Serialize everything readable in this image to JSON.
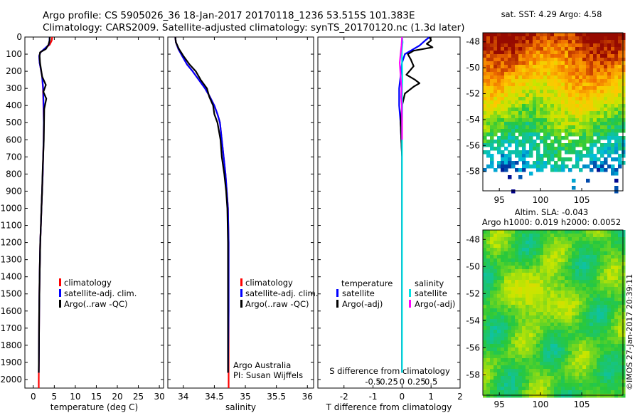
{
  "header": {
    "line1": "Argo profile: CS 5905026_36 18-Jan-2017 20170118_1236 53.515S 101.383E",
    "line2": "Climatology: CARS2009. Satellite-adjusted climatology: synTS_20170120.nc (1.3d later)"
  },
  "colors": {
    "climatology": "#ff0000",
    "satellite": "#0000ff",
    "argo": "#000000",
    "sal_satellite": "#00e5e5",
    "sal_argo": "#ff00ff"
  },
  "chart_data": [
    {
      "type": "line",
      "id": "temperature",
      "xlabel": "temperature (deg C)",
      "xlim": [
        -2,
        31
      ],
      "xticks": [
        0,
        5,
        10,
        15,
        20,
        25,
        30
      ],
      "ylim": [
        0,
        2050
      ],
      "yticks": [
        0,
        100,
        200,
        300,
        400,
        500,
        600,
        700,
        800,
        900,
        1000,
        1100,
        1200,
        1300,
        1400,
        1500,
        1600,
        1700,
        1800,
        1900,
        2000
      ],
      "legend": [
        "climatology",
        "satellite-adj. clim.",
        "Argo(..raw -QC)"
      ],
      "series": [
        {
          "name": "climatology",
          "color": "#ff0000",
          "x": [
            4.5,
            4.4,
            3.9,
            2.6,
            1.7,
            1.4,
            1.5,
            2.1,
            2.3,
            2.4,
            2.5,
            2.45,
            2.35,
            2.25,
            2.1,
            1.95,
            1.8,
            1.65,
            1.5,
            1.4,
            1.35,
            1.3,
            1.3
          ],
          "y": [
            0,
            20,
            45,
            70,
            90,
            110,
            150,
            230,
            300,
            400,
            500,
            600,
            700,
            800,
            900,
            1000,
            1100,
            1200,
            1400,
            1600,
            1800,
            2000,
            2050
          ]
        },
        {
          "name": "satellite-adj. clim.",
          "color": "#0000ff",
          "x": [
            3.9,
            3.85,
            3.7,
            2.6,
            1.7,
            1.4,
            1.5,
            2.1,
            2.35,
            2.45,
            2.5,
            2.45,
            2.35,
            2.25,
            2.1,
            1.95,
            1.8,
            1.65,
            1.5,
            1.4,
            1.35,
            1.3
          ],
          "y": [
            0,
            20,
            45,
            70,
            90,
            110,
            150,
            230,
            300,
            400,
            500,
            600,
            700,
            800,
            900,
            1000,
            1100,
            1200,
            1400,
            1600,
            1800,
            1960
          ]
        },
        {
          "name": "Argo(..raw -QC)",
          "color": "#000000",
          "x": [
            3.9,
            3.9,
            3.6,
            3.0,
            1.6,
            1.5,
            1.6,
            2.1,
            3.0,
            2.4,
            3.1,
            2.6,
            2.5,
            2.2,
            2.1,
            1.95,
            1.8,
            1.65,
            1.5,
            1.4,
            1.35,
            1.3
          ],
          "y": [
            0,
            20,
            45,
            70,
            90,
            110,
            150,
            230,
            280,
            320,
            360,
            420,
            600,
            800,
            900,
            1000,
            1100,
            1200,
            1400,
            1600,
            1800,
            1960
          ]
        }
      ]
    },
    {
      "type": "line",
      "id": "salinity",
      "xlabel": "salinity",
      "xlim": [
        33.75,
        36.1
      ],
      "xticks": [
        34,
        34.5,
        35,
        35.5,
        36
      ],
      "xticklabels": [
        "34",
        "34.5",
        "35",
        "35.5",
        "36"
      ],
      "ylim": [
        0,
        2050
      ],
      "legend": [
        "climatology",
        "satellite-adj. clim.",
        "Argo(..raw -QC)"
      ],
      "annotation": [
        "Argo Australia",
        "PI: Susan Wijffels"
      ],
      "series": [
        {
          "name": "climatology",
          "color": "#ff0000",
          "x": [
            33.87,
            33.88,
            33.92,
            33.98,
            34.06,
            34.15,
            34.25,
            34.35,
            34.43,
            34.5,
            34.55,
            34.59,
            34.62,
            34.65,
            34.68,
            34.7,
            34.72,
            34.73,
            34.73,
            34.73
          ],
          "y": [
            0,
            30,
            70,
            110,
            160,
            200,
            250,
            300,
            350,
            400,
            450,
            500,
            600,
            700,
            800,
            900,
            1000,
            1200,
            1600,
            2050
          ]
        },
        {
          "name": "satellite-adj. clim.",
          "color": "#0000ff",
          "x": [
            33.87,
            33.88,
            33.92,
            33.98,
            34.06,
            34.15,
            34.25,
            34.35,
            34.43,
            34.5,
            34.55,
            34.59,
            34.62,
            34.65,
            34.68,
            34.7,
            34.72,
            34.73,
            34.73,
            34.72
          ],
          "y": [
            0,
            30,
            70,
            110,
            160,
            200,
            250,
            300,
            350,
            400,
            450,
            500,
            600,
            700,
            800,
            900,
            1000,
            1200,
            1600,
            1960
          ]
        },
        {
          "name": "Argo(..raw -QC)",
          "color": "#000000",
          "x": [
            33.87,
            33.88,
            33.93,
            34.0,
            34.1,
            34.2,
            34.28,
            34.38,
            34.42,
            34.48,
            34.5,
            34.55,
            34.6,
            34.62,
            34.66,
            34.69,
            34.71,
            34.72,
            34.72,
            34.72
          ],
          "y": [
            0,
            30,
            70,
            110,
            160,
            200,
            250,
            300,
            350,
            400,
            450,
            500,
            600,
            700,
            800,
            900,
            1000,
            1200,
            1600,
            1960
          ]
        }
      ]
    },
    {
      "type": "line",
      "id": "difference",
      "xlabel": "T difference from climatology",
      "xlim": [
        -2.9,
        2.0
      ],
      "xticks": [
        -2,
        -1,
        0,
        1,
        2
      ],
      "top_axis_label": "S difference from climatology",
      "top_ticks": [
        -0.5,
        -0.25,
        0,
        0.25,
        0.5
      ],
      "top_ticklabels": [
        "-0.5",
        "-0.25",
        "0",
        "0.25",
        "0.5"
      ],
      "ylim": [
        0,
        2050
      ],
      "legend": [
        {
          "group": "temperature",
          "items": [
            "satellite",
            "Argo(-adj)"
          ]
        },
        {
          "group": "salinity",
          "items": [
            "satellite",
            "Argo(-adj)"
          ]
        }
      ],
      "series": [
        {
          "name": "T satellite",
          "color": "#0000ff",
          "x": [
            0.95,
            0.8,
            0.6,
            0.3,
            0.1,
            0.0,
            -0.1,
            -0.1,
            -0.05,
            0.0,
            0.0,
            0.0,
            0.0,
            0.0,
            0.0,
            0.0
          ],
          "y": [
            0,
            20,
            50,
            80,
            100,
            150,
            300,
            400,
            500,
            700,
            900,
            1100,
            1400,
            1600,
            1800,
            1960
          ]
        },
        {
          "name": "T Argo(-adj)",
          "color": "#000000",
          "x": [
            0.95,
            1.0,
            0.85,
            1.05,
            0.4,
            0.2,
            0.3,
            0.4,
            0.15,
            0.45,
            0.6,
            0.4,
            0.1,
            0.0,
            -0.05,
            0.0,
            0.0,
            0.0,
            0.0,
            0.0
          ],
          "y": [
            0,
            20,
            40,
            60,
            80,
            100,
            130,
            170,
            220,
            250,
            270,
            290,
            330,
            400,
            500,
            700,
            900,
            1100,
            1500,
            1960
          ]
        },
        {
          "name": "S satellite",
          "color": "#00e5e5",
          "x": [
            0.0,
            0.02,
            -0.01,
            0.0,
            0.01,
            0.0,
            0.01,
            0.0,
            0.0,
            0.0,
            0.0,
            0.0,
            0.0,
            0.0
          ],
          "y": [
            0,
            30,
            80,
            150,
            250,
            300,
            400,
            500,
            600,
            800,
            1000,
            1300,
            1600,
            1960
          ]
        },
        {
          "name": "S Argo(-adj)",
          "color": "#ff00ff",
          "x": [
            0.0,
            -0.02,
            -0.05,
            -0.08,
            -0.06,
            -0.04,
            -0.02,
            -0.03,
            -0.01,
            0.0,
            0.0
          ],
          "y": [
            0,
            50,
            100,
            150,
            200,
            250,
            300,
            350,
            400,
            500,
            600
          ]
        }
      ]
    },
    {
      "type": "heatmap",
      "id": "sst_map",
      "title": "sat. SST: 4.29 Argo: 4.58",
      "xlim": [
        93,
        110
      ],
      "ylim": [
        -59.5,
        -47.3
      ],
      "xticks": [
        95,
        100,
        105
      ],
      "yticks": [
        -58,
        -56,
        -54,
        -52,
        -50,
        -48
      ]
    },
    {
      "type": "heatmap",
      "id": "sla_map",
      "title": [
        "Altim. SLA: -0.043",
        "Argo h1000: 0.019 h2000: 0.0052"
      ],
      "xlim": [
        93,
        110
      ],
      "ylim": [
        -59.5,
        -47.3
      ],
      "xticks": [
        95,
        100,
        105
      ],
      "yticks": [
        -58,
        -56,
        -54,
        -52,
        -50,
        -48
      ]
    }
  ],
  "watermark": "©IMOS 27-Jan-2017 20:39:11"
}
